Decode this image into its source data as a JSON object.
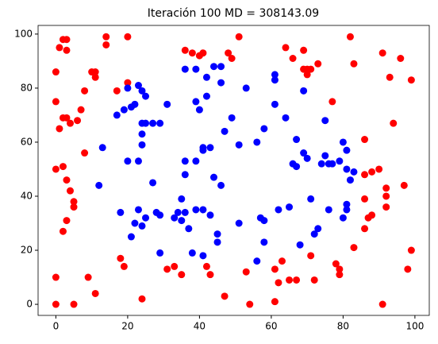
{
  "chart_data": {
    "type": "scatter",
    "title": "Iteración 100 MD = 308143.09",
    "xlim": [
      -4.95,
      104
    ],
    "ylim": [
      -4.1,
      103.2
    ],
    "xticks": [
      0,
      20,
      40,
      60,
      80,
      100
    ],
    "yticks": [
      0,
      20,
      40,
      60,
      80,
      100
    ],
    "grid": false,
    "series": [
      {
        "color": "#ff0000",
        "x": [
          0,
          0,
          0,
          0,
          0,
          1,
          2,
          3,
          3,
          1,
          2,
          3,
          2,
          3,
          4,
          5,
          5,
          3,
          2,
          4,
          6,
          7,
          8,
          10,
          11,
          11,
          8,
          9,
          11,
          5,
          14,
          14,
          17,
          20,
          20,
          18,
          19,
          24,
          33,
          31,
          35,
          36,
          38,
          40,
          41,
          42,
          43,
          48,
          49,
          51,
          53,
          54,
          47,
          61,
          62,
          63,
          61,
          65,
          67,
          64,
          66,
          69,
          70,
          71,
          69,
          70,
          73,
          71,
          72,
          77,
          78,
          79,
          79,
          82,
          83,
          83,
          86,
          86,
          86,
          87,
          88,
          88,
          90,
          86,
          91,
          92,
          92,
          92,
          93,
          94,
          96,
          91,
          97,
          98,
          99,
          99
        ],
        "values": [
          0,
          10,
          75,
          86,
          50,
          95,
          98,
          98,
          94,
          65,
          69,
          69,
          51,
          46,
          42,
          38,
          36,
          31,
          27,
          67,
          68,
          72,
          79,
          86,
          86,
          84,
          56,
          10,
          4,
          0,
          99,
          96,
          79,
          99,
          82,
          17,
          14,
          2,
          14,
          13,
          11,
          94,
          93,
          92,
          93,
          14,
          11,
          93,
          91,
          99,
          12,
          0,
          3,
          1,
          8,
          16,
          13,
          9,
          9,
          95,
          91,
          94,
          87,
          87,
          87,
          85,
          89,
          18,
          9,
          75,
          15,
          13,
          11,
          99,
          89,
          21,
          48,
          61,
          28,
          32,
          33,
          49,
          50,
          39,
          93,
          40,
          43,
          36,
          84,
          67,
          91,
          0,
          44,
          13,
          20,
          83
        ]
      },
      {
        "color": "#0000ff",
        "x": [
          20,
          17,
          19,
          21,
          23,
          24,
          25,
          22,
          24,
          25,
          24,
          24,
          23,
          20,
          13,
          12,
          18,
          21,
          22,
          23,
          25,
          24,
          27,
          29,
          31,
          27,
          28,
          29,
          29,
          33,
          34,
          35,
          35,
          36,
          37,
          38,
          36,
          39,
          39,
          40,
          42,
          44,
          46,
          46,
          42,
          41,
          43,
          41,
          36,
          36,
          39,
          39,
          41,
          43,
          41,
          45,
          45,
          44,
          46,
          47,
          49,
          51,
          53,
          51,
          56,
          56,
          58,
          57,
          58,
          58,
          61,
          61,
          61,
          62,
          64,
          65,
          66,
          67,
          67,
          69,
          69,
          70,
          68,
          71,
          72,
          73,
          74,
          75,
          75,
          76,
          76,
          77,
          79,
          80,
          81,
          81,
          83,
          82,
          81,
          81,
          80
        ],
        "values": [
          80,
          70,
          72,
          73,
          81,
          79,
          77,
          74,
          67,
          67,
          63,
          59,
          53,
          53,
          58,
          44,
          34,
          25,
          30,
          35,
          32,
          29,
          67,
          67,
          74,
          45,
          34,
          33,
          19,
          32,
          34,
          39,
          31,
          34,
          28,
          19,
          87,
          87,
          75,
          72,
          84,
          88,
          88,
          82,
          77,
          58,
          58,
          57,
          53,
          48,
          53,
          35,
          35,
          33,
          18,
          26,
          23,
          47,
          44,
          64,
          69,
          59,
          80,
          30,
          16,
          60,
          65,
          32,
          31,
          23,
          85,
          83,
          74,
          35,
          69,
          36,
          52,
          51,
          61,
          79,
          56,
          54,
          22,
          39,
          26,
          28,
          52,
          68,
          55,
          52,
          35,
          52,
          53,
          60,
          57,
          50,
          49,
          46,
          37,
          35,
          32
        ]
      }
    ]
  }
}
